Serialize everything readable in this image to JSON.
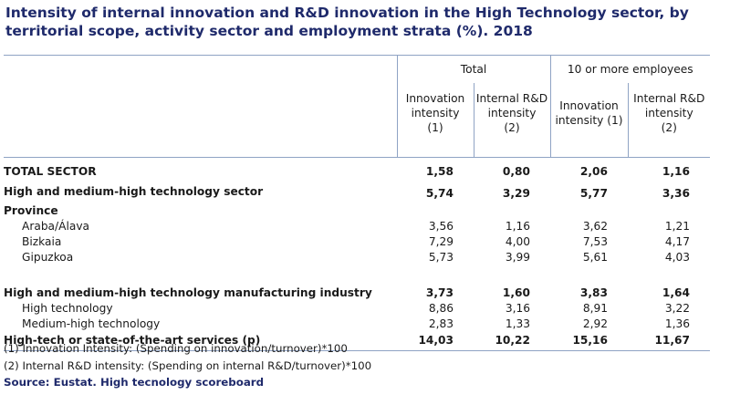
{
  "title": "Intensity of internal innovation and R&D innovation in the High Technology sector, by territorial scope, activity sector and employment strata (%). 2018",
  "header": {
    "group_total": "Total",
    "group_10plus": "10 or more employees",
    "col_innovation_l1": "Innovation",
    "col_innovation_l2": "intensity",
    "col_innovation_l3": "(1)",
    "col_rd_l1": "Internal R&D",
    "col_rd_l2": "intensity",
    "col_rd_l3": "(2)",
    "col_innovation2_l1": "Innovation",
    "col_innovation2_l2": "intensity (1)",
    "col_rd2_l1": "Internal R&D",
    "col_rd2_l2": "intensity",
    "col_rd2_l3": "(2)"
  },
  "rows": [
    {
      "label": "TOTAL SECTOR",
      "v": [
        "1,58",
        "0,80",
        "2,06",
        "1,16"
      ]
    },
    {
      "label": "High and medium-high technology sector",
      "v": [
        "5,74",
        "3,29",
        "5,77",
        "3,36"
      ]
    },
    {
      "label": "Province"
    },
    {
      "label": "Araba/Álava",
      "v": [
        "3,56",
        "1,16",
        "3,62",
        "1,21"
      ]
    },
    {
      "label": "Bizkaia",
      "v": [
        "7,29",
        "4,00",
        "7,53",
        "4,17"
      ]
    },
    {
      "label": "Gipuzkoa",
      "v": [
        "5,73",
        "3,99",
        "5,61",
        "4,03"
      ]
    },
    {
      "label": "High and medium-high technology manufacturing industry",
      "v": [
        "3,73",
        "1,60",
        "3,83",
        "1,64"
      ]
    },
    {
      "label": "High technology",
      "v": [
        "8,86",
        "3,16",
        "8,91",
        "3,22"
      ]
    },
    {
      "label": "Medium-high technology",
      "v": [
        "2,83",
        "1,33",
        "2,92",
        "1,36"
      ]
    },
    {
      "label": "High-tech or state-of-the-art services (p)",
      "v": [
        "14,03",
        "10,22",
        "15,16",
        "11,67"
      ]
    }
  ],
  "notes": {
    "n1": "(1) Innovation Intensity: (Spending on innovation/turnover)*100",
    "n2": "(2) Internal R&D intensity: (Spending on internal R&D/turnover)*100",
    "source": "Source: Eustat. High tecnology scoreboard"
  }
}
